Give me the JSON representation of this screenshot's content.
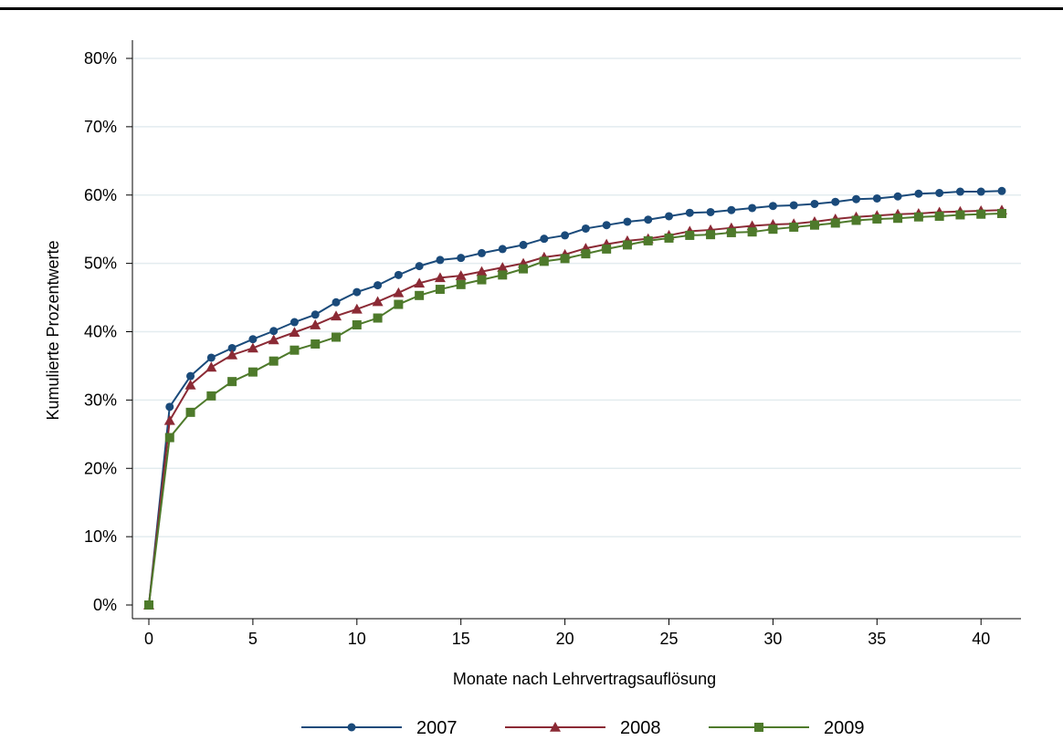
{
  "chart_data": {
    "type": "line",
    "xlabel": "Monate nach Lehrvertragsauflösung",
    "ylabel": "Kumulierte Prozentwerte",
    "xlim": [
      0,
      41
    ],
    "ylim": [
      0,
      80
    ],
    "x_ticks": [
      0,
      5,
      10,
      15,
      20,
      25,
      30,
      35,
      40
    ],
    "x_tick_labels": [
      "0",
      "5",
      "10",
      "15",
      "20",
      "25",
      "30",
      "35",
      "40"
    ],
    "y_ticks": [
      0,
      10,
      20,
      30,
      40,
      50,
      60,
      70,
      80
    ],
    "y_tick_labels": [
      "0%",
      "10%",
      "20%",
      "30%",
      "40%",
      "50%",
      "60%",
      "70%",
      "80%"
    ],
    "grid": "horizontal",
    "legend_position": "bottom",
    "x": [
      0,
      1,
      2,
      3,
      4,
      5,
      6,
      7,
      8,
      9,
      10,
      11,
      12,
      13,
      14,
      15,
      16,
      17,
      18,
      19,
      20,
      21,
      22,
      23,
      24,
      25,
      26,
      27,
      28,
      29,
      30,
      31,
      32,
      33,
      34,
      35,
      36,
      37,
      38,
      39,
      40,
      41
    ],
    "series": [
      {
        "name": "2007",
        "color": "#1a4a7a",
        "marker": "circle",
        "values": [
          0,
          29.0,
          33.5,
          36.2,
          37.6,
          38.9,
          40.1,
          41.4,
          42.5,
          44.3,
          45.8,
          46.8,
          48.3,
          49.6,
          50.5,
          50.8,
          51.5,
          52.1,
          52.7,
          53.6,
          54.1,
          55.1,
          55.6,
          56.1,
          56.4,
          56.9,
          57.4,
          57.5,
          57.8,
          58.1,
          58.4,
          58.5,
          58.7,
          59.0,
          59.4,
          59.5,
          59.8,
          60.2,
          60.3,
          60.5,
          60.5,
          60.6
        ]
      },
      {
        "name": "2008",
        "color": "#8b2a35",
        "marker": "triangle",
        "values": [
          0,
          27.0,
          32.2,
          34.8,
          36.6,
          37.6,
          38.8,
          39.9,
          41.0,
          42.3,
          43.3,
          44.4,
          45.7,
          47.1,
          47.9,
          48.2,
          48.8,
          49.4,
          50.0,
          50.9,
          51.3,
          52.2,
          52.8,
          53.3,
          53.6,
          54.1,
          54.7,
          54.9,
          55.2,
          55.5,
          55.7,
          55.8,
          56.1,
          56.5,
          56.8,
          57.0,
          57.2,
          57.3,
          57.5,
          57.6,
          57.7,
          57.8
        ]
      },
      {
        "name": "2009",
        "color": "#4e7a2b",
        "marker": "square",
        "values": [
          0,
          24.5,
          28.2,
          30.6,
          32.7,
          34.1,
          35.7,
          37.3,
          38.2,
          39.2,
          41.0,
          42.0,
          44.0,
          45.3,
          46.2,
          46.9,
          47.6,
          48.3,
          49.2,
          50.3,
          50.7,
          51.4,
          52.1,
          52.7,
          53.3,
          53.7,
          54.1,
          54.2,
          54.5,
          54.6,
          55.0,
          55.3,
          55.6,
          55.9,
          56.3,
          56.5,
          56.6,
          56.8,
          56.9,
          57.1,
          57.2,
          57.3
        ]
      }
    ]
  }
}
